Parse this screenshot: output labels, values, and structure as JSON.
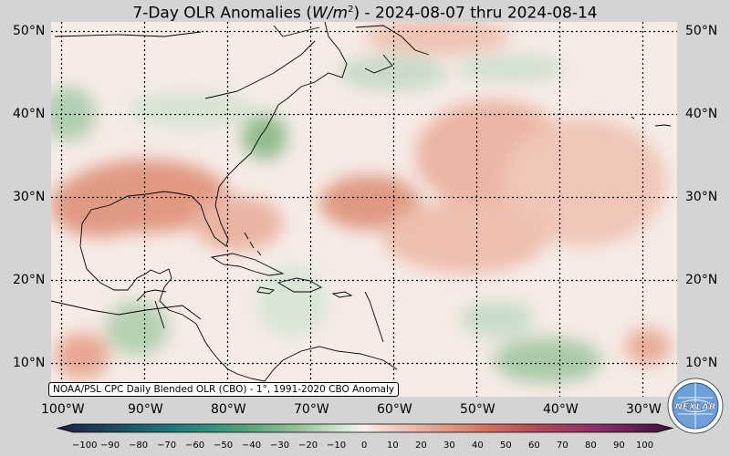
{
  "title": {
    "prefix": "7-Day OLR Anomalies (",
    "unit_base": "W/m",
    "unit_exp": "2",
    "suffix": ") - 2024-08-07 thru 2024-08-14"
  },
  "source_note": "NOAA/PSL CPC Daily Blended OLR (CBO) - 1°, 1991-2020 CBO Anomaly",
  "logo_text": "NEXLAB",
  "map": {
    "lat_labels": [
      "50°N",
      "40°N",
      "30°N",
      "20°N",
      "10°N"
    ],
    "lon_labels": [
      "100°W",
      "90°W",
      "80°W",
      "70°W",
      "60°W",
      "50°W",
      "40°W",
      "30°W"
    ],
    "gridlines": true
  },
  "colorbar": {
    "ticks": [
      "−100",
      "−90",
      "−80",
      "−70",
      "−60",
      "−50",
      "−40",
      "−30",
      "−20",
      "−10",
      "0",
      "10",
      "20",
      "30",
      "40",
      "50",
      "60",
      "70",
      "80",
      "90",
      "100"
    ],
    "negative_color": "#5e9e6e",
    "positive_color": "#d97b62"
  },
  "colors": {
    "neutral": "#f7ece8",
    "cool_green": "#a8c9a8",
    "warm_red": "#e09580"
  }
}
